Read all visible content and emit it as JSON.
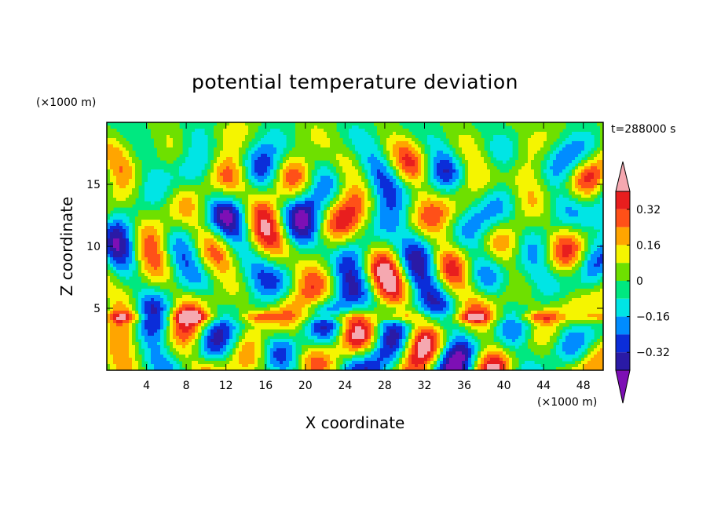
{
  "chart_data": {
    "type": "heatmap",
    "title": "potential temperature deviation",
    "xlabel": "X coordinate",
    "ylabel": "Z coordinate",
    "x_unit": "(×1000 m)",
    "y_unit": "(×1000 m)",
    "time_label": "t=288000 s",
    "xlim": [
      0,
      50
    ],
    "ylim": [
      0,
      20
    ],
    "x_ticks": [
      4,
      8,
      12,
      16,
      20,
      24,
      28,
      32,
      36,
      40,
      44,
      48
    ],
    "y_ticks": [
      5,
      10,
      15
    ],
    "x_tick_labels": [
      "4",
      "8",
      "12",
      "16",
      "20",
      "24",
      "28",
      "32",
      "36",
      "40",
      "44",
      "48"
    ],
    "y_tick_labels": [
      "5",
      "10",
      "15"
    ],
    "colorbar": {
      "levels": [
        -0.4,
        -0.32,
        -0.24,
        -0.16,
        -0.08,
        0,
        0.08,
        0.16,
        0.24,
        0.32,
        0.4
      ],
      "labels": [
        "0.32",
        "0.16",
        "0",
        "−0.16",
        "−0.32"
      ],
      "label_values": [
        0.32,
        0.16,
        0,
        -0.16,
        -0.32
      ],
      "colors": [
        "#7d0fb5",
        "#2a1aa6",
        "#0b2dd9",
        "#008cff",
        "#00e5e5",
        "#00e880",
        "#6ee000",
        "#f5f500",
        "#ffa500",
        "#ff5018",
        "#e81e1e",
        "#f5a8b0"
      ],
      "extend": "both"
    }
  }
}
